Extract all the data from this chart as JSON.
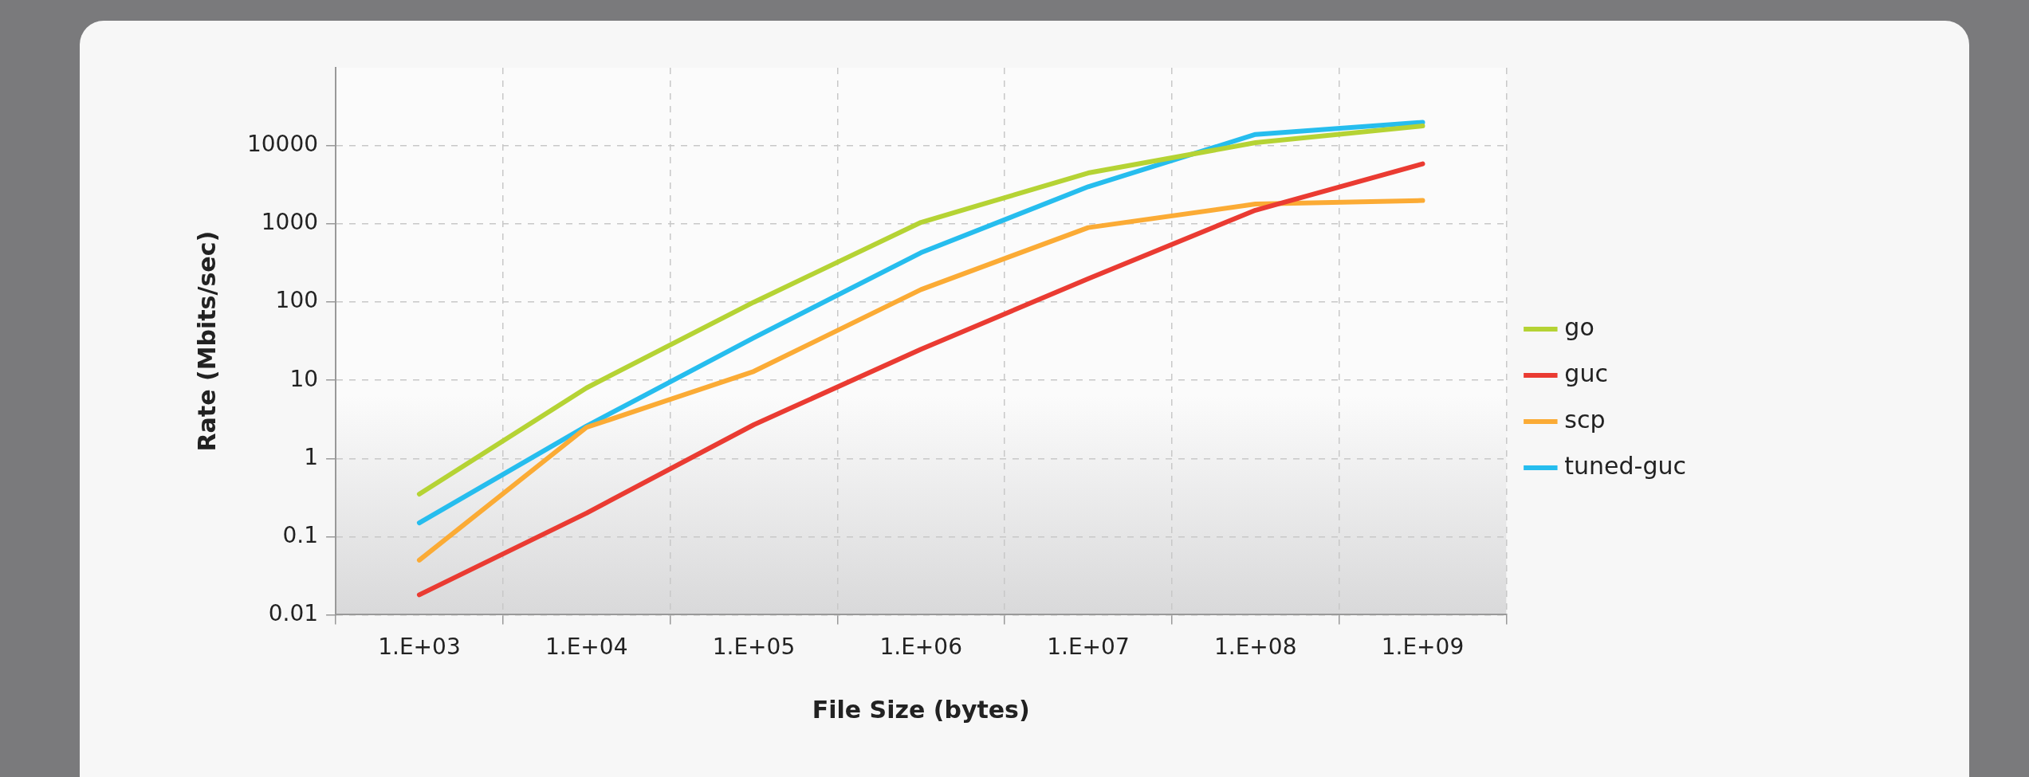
{
  "chart_data": {
    "type": "line",
    "xlabel": "File Size (bytes)",
    "ylabel": "Rate (Mbits/sec)",
    "categories": [
      "1.E+03",
      "1.E+04",
      "1.E+05",
      "1.E+06",
      "1.E+07",
      "1.E+08",
      "1.E+09"
    ],
    "log": "y",
    "ylim": [
      0.01,
      100000
    ],
    "yticks": [
      0.01,
      0.1,
      1,
      10,
      100,
      1000,
      10000
    ],
    "grid": true,
    "legend": "right",
    "marker": "none",
    "line_style": "solid",
    "series": [
      {
        "name": "go",
        "color": "#b5d334",
        "values": [
          0.35,
          8,
          100,
          1050,
          4500,
          11000,
          18000
        ]
      },
      {
        "name": "guc",
        "color": "#ea3b32",
        "values": [
          0.018,
          0.2,
          2.7,
          25,
          200,
          1500,
          5900
        ]
      },
      {
        "name": "scp",
        "color": "#fbab35",
        "values": [
          0.05,
          2.5,
          13,
          145,
          900,
          1800,
          2000
        ]
      },
      {
        "name": "tuned-guc",
        "color": "#26bdee",
        "values": [
          0.15,
          2.6,
          35,
          430,
          3000,
          14000,
          20000
        ]
      }
    ]
  }
}
